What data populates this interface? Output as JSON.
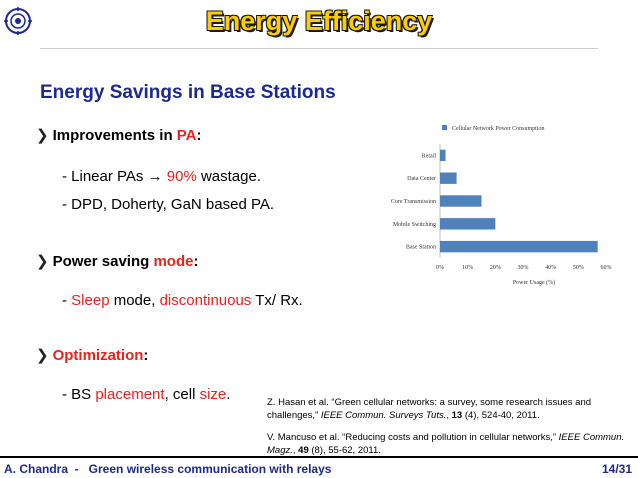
{
  "slide": {
    "title": "Energy Efficiency",
    "subtitle": "Energy Savings in Base Stations"
  },
  "bullets": [
    {
      "pre": "Improvements in ",
      "highlight": "PA",
      "post": ":",
      "lines": [
        {
          "a": "- Linear PAs → ",
          "b": "90%",
          "c": " wastage."
        },
        {
          "a": "- DPD, Doherty, GaN based PA."
        }
      ]
    },
    {
      "pre": "Power saving ",
      "highlight": "mode",
      "post": ":",
      "lines": [
        {
          "a": "- ",
          "b": "Sleep",
          "c": " mode, ",
          "d": "discontinuous",
          "e": " Tx/ Rx."
        }
      ]
    },
    {
      "highlight": "Optimization",
      "post": ":",
      "lines": [
        {
          "a": "- BS ",
          "b": "placement",
          "c": ", cell ",
          "d": "size",
          "e": "."
        }
      ]
    }
  ],
  "chart_data": {
    "type": "bar",
    "orientation": "horizontal",
    "title": "Cellular Network Power Consumption",
    "categories": [
      "Retail",
      "Data Center",
      "Core Transmission",
      "Mobile Switching",
      "Base Station"
    ],
    "values": [
      2,
      6,
      15,
      20,
      57
    ],
    "xlabel": "Power Usage (%)",
    "ylabel": "",
    "xlim": [
      0,
      60
    ],
    "x_ticks": [
      "0%",
      "10%",
      "20%",
      "30%",
      "40%",
      "50%",
      "60%"
    ],
    "bar_color": "#4f81bd",
    "legend": "top"
  },
  "references": [
    {
      "authors": "Z. Hasan et al. “Green cellular networks: a survey, some research issues and challenges,” ",
      "journal": "IEEE Commun. Surveys Tuts.",
      "sep": ", ",
      "volume": "13",
      "rest": " (4), 524-40, 2011."
    },
    {
      "authors": "V. Mancuso et al. “Reducing costs and pollution in cellular networks,” ",
      "journal": "IEEE Commun. Magz.",
      "sep": ", ",
      "volume": "49",
      "rest": " (8), 55-62, 2011."
    }
  ],
  "footer": {
    "left": "A. Chandra  -   Green wireless communication with relays",
    "right": "14/31"
  },
  "colors": {
    "title": "#ffcc00",
    "subtitle": "#1c2a8c",
    "highlight": "#e8231c",
    "footer": "#1c2a8c"
  }
}
